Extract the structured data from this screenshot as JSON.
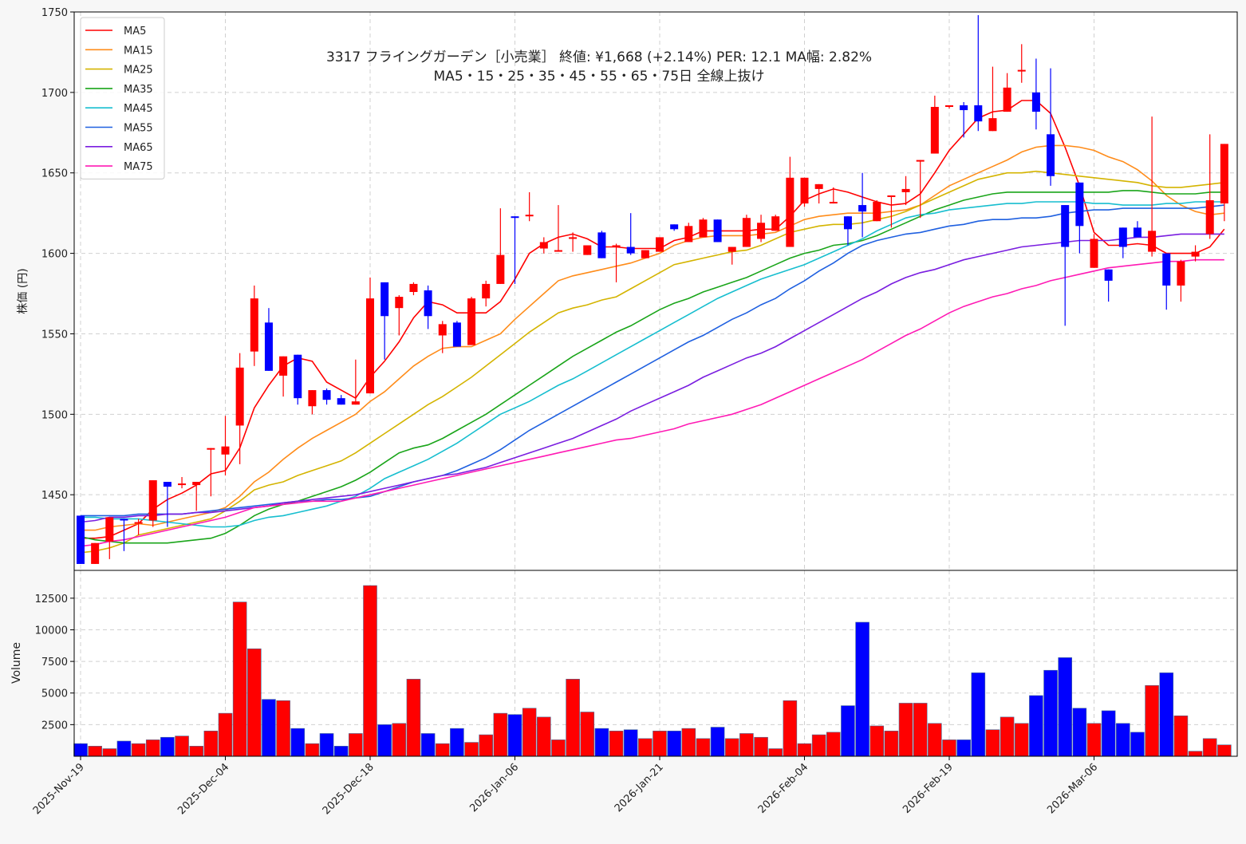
{
  "chart_data": {
    "type": "candlestick",
    "title_line1": "3317  フライングガーデン［小売業］ 終値: ¥1,668 (+2.14%)  PER: 12.1  MA幅: 2.82%",
    "title_line2": "MA5・15・25・35・45・55・65・75日 全線上抜け",
    "price_ylabel": "株価 (円)",
    "volume_ylabel": "Volume",
    "price_ylim": [
      1403,
      1750
    ],
    "volume_ylim": [
      0,
      14700
    ],
    "price_yticks": [
      1450,
      1500,
      1550,
      1600,
      1650,
      1700,
      1750
    ],
    "volume_yticks": [
      2500,
      5000,
      7500,
      10000,
      12500
    ],
    "x_tick_labels": [
      {
        "index": 0,
        "label": "2025-Nov-19"
      },
      {
        "index": 10,
        "label": "2025-Dec-04"
      },
      {
        "index": 20,
        "label": "2025-Dec-18"
      },
      {
        "index": 30,
        "label": "2026-Jan-06"
      },
      {
        "index": 40,
        "label": "2026-Jan-21"
      },
      {
        "index": 50,
        "label": "2026-Feb-04"
      },
      {
        "index": 60,
        "label": "2026-Feb-19"
      },
      {
        "index": 70,
        "label": "2026-Mar-06"
      }
    ],
    "grid": true,
    "legend_position": "top-left",
    "colors": {
      "up": "#ff0000",
      "down": "#0000ff"
    },
    "candles": [
      [
        1437,
        1437,
        1407,
        1407
      ],
      [
        1407,
        1420,
        1407,
        1420
      ],
      [
        1421,
        1436,
        1410,
        1436
      ],
      [
        1435,
        1435,
        1415,
        1434
      ],
      [
        1433,
        1435,
        1425,
        1433
      ],
      [
        1434,
        1459,
        1430,
        1459
      ],
      [
        1458,
        1458,
        1430,
        1455
      ],
      [
        1456,
        1461,
        1454,
        1457
      ],
      [
        1456,
        1458,
        1440,
        1458
      ],
      [
        1479,
        1479,
        1449,
        1479
      ],
      [
        1475,
        1499,
        1462,
        1480
      ],
      [
        1493,
        1538,
        1469,
        1529
      ],
      [
        1539,
        1580,
        1530,
        1572
      ],
      [
        1557,
        1566,
        1527,
        1527
      ],
      [
        1524,
        1536,
        1511,
        1536
      ],
      [
        1537,
        1537,
        1506,
        1510
      ],
      [
        1505,
        1515,
        1500,
        1515
      ],
      [
        1515,
        1516,
        1506,
        1509
      ],
      [
        1510,
        1512,
        1506,
        1506
      ],
      [
        1506,
        1534,
        1506,
        1508
      ],
      [
        1513,
        1585,
        1513,
        1572
      ],
      [
        1582,
        1582,
        1534,
        1561
      ],
      [
        1566,
        1574,
        1549,
        1573
      ],
      [
        1576,
        1582,
        1574,
        1581
      ],
      [
        1577,
        1580,
        1553,
        1561
      ],
      [
        1549,
        1558,
        1538,
        1556
      ],
      [
        1557,
        1558,
        1542,
        1542
      ],
      [
        1543,
        1573,
        1543,
        1572
      ],
      [
        1572,
        1583,
        1567,
        1581
      ],
      [
        1581,
        1628,
        1581,
        1599
      ],
      [
        1623,
        1623,
        1581,
        1622
      ],
      [
        1623,
        1638,
        1620,
        1624
      ],
      [
        1603,
        1610,
        1600,
        1607
      ],
      [
        1602,
        1630,
        1601,
        1602
      ],
      [
        1610,
        1613,
        1601,
        1610
      ],
      [
        1599,
        1605,
        1599,
        1605
      ],
      [
        1613,
        1614,
        1597,
        1597
      ],
      [
        1605,
        1606,
        1582,
        1605
      ],
      [
        1604,
        1625,
        1599,
        1600
      ],
      [
        1597,
        1602,
        1597,
        1602
      ],
      [
        1601,
        1610,
        1601,
        1610
      ],
      [
        1618,
        1618,
        1614,
        1615
      ],
      [
        1607,
        1619,
        1607,
        1617
      ],
      [
        1610,
        1622,
        1610,
        1621
      ],
      [
        1621,
        1621,
        1607,
        1607
      ],
      [
        1601,
        1604,
        1593,
        1604
      ],
      [
        1604,
        1624,
        1604,
        1622
      ],
      [
        1609,
        1624,
        1607,
        1619
      ],
      [
        1614,
        1624,
        1614,
        1623
      ],
      [
        1604,
        1660,
        1604,
        1647
      ],
      [
        1631,
        1647,
        1629,
        1647
      ],
      [
        1640,
        1643,
        1631,
        1643
      ],
      [
        1631,
        1641,
        1631,
        1632
      ],
      [
        1623,
        1623,
        1605,
        1615
      ],
      [
        1630,
        1650,
        1610,
        1626
      ],
      [
        1620,
        1633,
        1620,
        1632
      ],
      [
        1636,
        1636,
        1616,
        1636
      ],
      [
        1638,
        1648,
        1630,
        1640
      ],
      [
        1658,
        1658,
        1622,
        1658
      ],
      [
        1662,
        1698,
        1662,
        1691
      ],
      [
        1692,
        1692,
        1690,
        1692
      ],
      [
        1692,
        1694,
        1672,
        1689
      ],
      [
        1692,
        1748,
        1676,
        1682
      ],
      [
        1676,
        1716,
        1676,
        1684
      ],
      [
        1688,
        1712,
        1688,
        1703
      ],
      [
        1714,
        1730,
        1706,
        1714
      ],
      [
        1700,
        1721,
        1677,
        1688
      ],
      [
        1674,
        1715,
        1642,
        1648
      ],
      [
        1630,
        1630,
        1555,
        1604
      ],
      [
        1644,
        1644,
        1600,
        1617
      ],
      [
        1591,
        1612,
        1591,
        1609
      ],
      [
        1590,
        1590,
        1570,
        1583
      ],
      [
        1616,
        1616,
        1597,
        1604
      ],
      [
        1616,
        1620,
        1610,
        1610
      ],
      [
        1601,
        1685,
        1598,
        1614
      ],
      [
        1600,
        1600,
        1565,
        1580
      ],
      [
        1580,
        1596,
        1570,
        1595
      ],
      [
        1598,
        1605,
        1595,
        1601
      ],
      [
        1612,
        1674,
        1609,
        1633
      ],
      [
        1631,
        1668,
        1620,
        1668
      ]
    ],
    "volume": [
      1000,
      800,
      600,
      1200,
      1000,
      1300,
      1500,
      1600,
      800,
      2000,
      3400,
      12200,
      8500,
      4500,
      4400,
      2200,
      1000,
      1800,
      800,
      1800,
      13500,
      2500,
      2600,
      6100,
      1800,
      1000,
      2200,
      1100,
      1700,
      3400,
      3300,
      3800,
      3100,
      1300,
      6100,
      3500,
      2200,
      2000,
      2100,
      1400,
      2000,
      2000,
      2200,
      1400,
      2300,
      1400,
      1800,
      1500,
      600,
      4400,
      1000,
      1700,
      1900,
      4000,
      10600,
      2400,
      2000,
      4200,
      4200,
      2600,
      1300,
      1300,
      6600,
      2100,
      3100,
      2600,
      4800,
      6800,
      7800,
      3800,
      2600,
      3600,
      2600,
      1900,
      5600,
      6600,
      3200,
      400,
      1400,
      900
    ],
    "series": [
      {
        "name": "MA5",
        "color": "#ff0000",
        "values": [
          1423,
          1423,
          1424,
          1428,
          1432,
          1441,
          1447,
          1451,
          1456,
          1463,
          1465,
          1479,
          1504,
          1518,
          1530,
          1535,
          1533,
          1520,
          1515,
          1510,
          1523,
          1533,
          1545,
          1560,
          1570,
          1568,
          1563,
          1563,
          1563,
          1570,
          1584,
          1600,
          1606,
          1610,
          1612,
          1609,
          1604,
          1604,
          1603,
          1603,
          1603,
          1608,
          1610,
          1614,
          1614,
          1614,
          1614,
          1615,
          1615,
          1623,
          1633,
          1637,
          1640,
          1638,
          1635,
          1632,
          1630,
          1631,
          1637,
          1650,
          1664,
          1674,
          1684,
          1688,
          1689,
          1695,
          1695,
          1687,
          1666,
          1642,
          1613,
          1605,
          1605,
          1606,
          1605,
          1600,
          1600,
          1600,
          1604,
          1615
        ]
      },
      {
        "name": "MA15",
        "color": "#ff8c1a",
        "values": [
          1428,
          1428,
          1430,
          1431,
          1432,
          1431,
          1433,
          1435,
          1437,
          1439,
          1442,
          1449,
          1458,
          1464,
          1472,
          1479,
          1485,
          1490,
          1495,
          1500,
          1508,
          1514,
          1522,
          1530,
          1536,
          1541,
          1542,
          1542,
          1546,
          1550,
          1559,
          1567,
          1575,
          1583,
          1586,
          1588,
          1590,
          1592,
          1594,
          1597,
          1600,
          1605,
          1608,
          1610,
          1611,
          1611,
          1611,
          1612,
          1613,
          1617,
          1621,
          1623,
          1624,
          1625,
          1625,
          1625,
          1626,
          1627,
          1630,
          1636,
          1642,
          1646,
          1650,
          1654,
          1658,
          1663,
          1666,
          1667,
          1667,
          1666,
          1664,
          1660,
          1657,
          1652,
          1645,
          1636,
          1630,
          1626,
          1624,
          1625
        ]
      },
      {
        "name": "MA25",
        "color": "#d4b400",
        "values": [
          1414,
          1415,
          1417,
          1420,
          1425,
          1427,
          1429,
          1431,
          1433,
          1435,
          1440,
          1446,
          1453,
          1456,
          1458,
          1462,
          1465,
          1468,
          1471,
          1476,
          1482,
          1488,
          1494,
          1500,
          1506,
          1511,
          1517,
          1523,
          1530,
          1537,
          1544,
          1551,
          1557,
          1563,
          1566,
          1568,
          1571,
          1573,
          1578,
          1583,
          1588,
          1593,
          1595,
          1597,
          1599,
          1601,
          1602,
          1605,
          1609,
          1613,
          1615,
          1617,
          1618,
          1618,
          1619,
          1621,
          1623,
          1626,
          1630,
          1634,
          1638,
          1642,
          1646,
          1648,
          1650,
          1650,
          1651,
          1650,
          1649,
          1648,
          1647,
          1646,
          1645,
          1644,
          1642,
          1641,
          1641,
          1642,
          1643,
          1644
        ]
      },
      {
        "name": "MA35",
        "color": "#1aa51a",
        "values": [
          1424,
          1422,
          1421,
          1420,
          1420,
          1420,
          1420,
          1421,
          1422,
          1423,
          1426,
          1431,
          1437,
          1441,
          1444,
          1446,
          1449,
          1452,
          1455,
          1459,
          1464,
          1470,
          1476,
          1479,
          1481,
          1485,
          1490,
          1495,
          1500,
          1506,
          1512,
          1518,
          1524,
          1530,
          1536,
          1541,
          1546,
          1551,
          1555,
          1560,
          1565,
          1569,
          1572,
          1576,
          1579,
          1582,
          1585,
          1589,
          1593,
          1597,
          1600,
          1602,
          1605,
          1606,
          1608,
          1611,
          1615,
          1619,
          1623,
          1627,
          1630,
          1633,
          1635,
          1637,
          1638,
          1638,
          1638,
          1638,
          1638,
          1638,
          1638,
          1638,
          1639,
          1639,
          1638,
          1637,
          1637,
          1637,
          1638,
          1638
        ]
      },
      {
        "name": "MA45",
        "color": "#17becf",
        "values": [
          1436,
          1436,
          1435,
          1435,
          1435,
          1434,
          1433,
          1432,
          1431,
          1430,
          1430,
          1431,
          1434,
          1436,
          1437,
          1439,
          1441,
          1443,
          1446,
          1449,
          1454,
          1460,
          1464,
          1468,
          1472,
          1477,
          1482,
          1488,
          1494,
          1500,
          1504,
          1508,
          1513,
          1518,
          1522,
          1527,
          1532,
          1537,
          1542,
          1547,
          1552,
          1557,
          1562,
          1567,
          1572,
          1576,
          1580,
          1584,
          1587,
          1590,
          1593,
          1597,
          1601,
          1605,
          1609,
          1614,
          1618,
          1622,
          1624,
          1625,
          1627,
          1628,
          1629,
          1630,
          1631,
          1631,
          1632,
          1632,
          1632,
          1632,
          1631,
          1631,
          1630,
          1630,
          1630,
          1631,
          1631,
          1632,
          1632,
          1632
        ]
      },
      {
        "name": "MA55",
        "color": "#1f60e0",
        "values": [
          1437,
          1437,
          1437,
          1437,
          1438,
          1438,
          1438,
          1438,
          1439,
          1440,
          1441,
          1442,
          1443,
          1444,
          1445,
          1446,
          1446,
          1447,
          1447,
          1448,
          1449,
          1452,
          1455,
          1458,
          1460,
          1462,
          1465,
          1469,
          1473,
          1478,
          1484,
          1490,
          1495,
          1500,
          1505,
          1510,
          1515,
          1520,
          1525,
          1530,
          1535,
          1540,
          1545,
          1549,
          1554,
          1559,
          1563,
          1568,
          1572,
          1578,
          1583,
          1589,
          1594,
          1600,
          1605,
          1608,
          1610,
          1612,
          1613,
          1615,
          1617,
          1618,
          1620,
          1621,
          1621,
          1622,
          1622,
          1623,
          1625,
          1626,
          1627,
          1627,
          1628,
          1628,
          1628,
          1628,
          1628,
          1628,
          1629,
          1630
        ]
      },
      {
        "name": "MA65",
        "color": "#7a1ee0",
        "values": [
          1433,
          1434,
          1436,
          1436,
          1437,
          1437,
          1438,
          1438,
          1439,
          1439,
          1440,
          1441,
          1442,
          1443,
          1445,
          1446,
          1447,
          1448,
          1449,
          1450,
          1452,
          1454,
          1456,
          1458,
          1460,
          1462,
          1463,
          1465,
          1467,
          1470,
          1473,
          1476,
          1479,
          1482,
          1485,
          1489,
          1493,
          1497,
          1502,
          1506,
          1510,
          1514,
          1518,
          1523,
          1527,
          1531,
          1535,
          1538,
          1542,
          1547,
          1552,
          1557,
          1562,
          1567,
          1572,
          1576,
          1581,
          1585,
          1588,
          1590,
          1593,
          1596,
          1598,
          1600,
          1602,
          1604,
          1605,
          1606,
          1607,
          1608,
          1608,
          1608,
          1609,
          1610,
          1610,
          1611,
          1612,
          1612,
          1612,
          1612
        ]
      },
      {
        "name": "MA75",
        "color": "#ff1ab4",
        "values": [
          1418,
          1419,
          1421,
          1422,
          1424,
          1426,
          1428,
          1430,
          1432,
          1434,
          1436,
          1439,
          1442,
          1443,
          1444,
          1445,
          1446,
          1446,
          1446,
          1448,
          1450,
          1452,
          1454,
          1456,
          1458,
          1460,
          1462,
          1464,
          1466,
          1468,
          1470,
          1472,
          1474,
          1476,
          1478,
          1480,
          1482,
          1484,
          1485,
          1487,
          1489,
          1491,
          1494,
          1496,
          1498,
          1500,
          1503,
          1506,
          1510,
          1514,
          1518,
          1522,
          1526,
          1530,
          1534,
          1539,
          1544,
          1549,
          1553,
          1558,
          1563,
          1567,
          1570,
          1573,
          1575,
          1578,
          1580,
          1583,
          1585,
          1587,
          1589,
          1591,
          1592,
          1593,
          1594,
          1595,
          1595,
          1596,
          1596,
          1596
        ]
      }
    ]
  }
}
